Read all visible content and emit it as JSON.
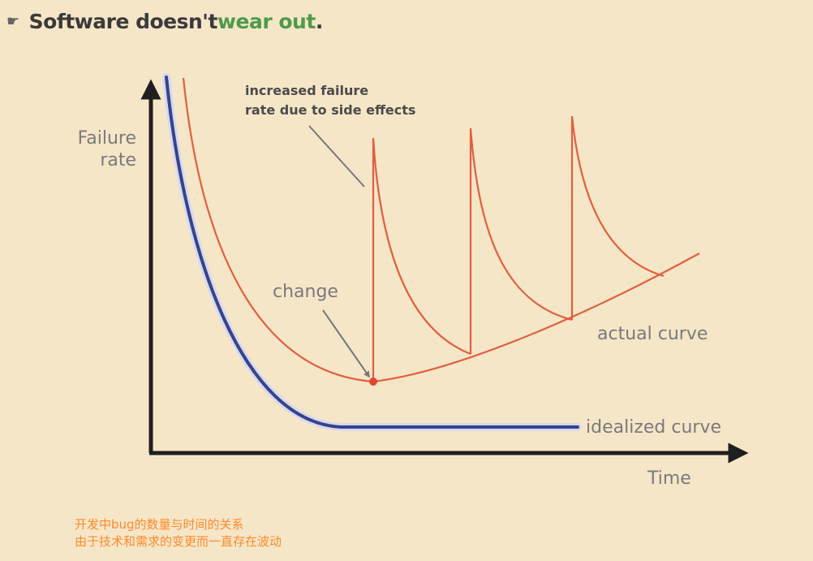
{
  "bullet": {
    "icon": "pointing-hand-icon",
    "text_before": "Software doesn't ",
    "text_highlight": "wear out",
    "text_after": ".",
    "highlight_color": "#4e9a4a"
  },
  "diagram": {
    "y_axis_label_line1": "Failure",
    "y_axis_label_line2": "rate",
    "x_axis_label": "Time",
    "annotation_line1": "increased failure",
    "annotation_line2": "rate due to side effects",
    "change_label": "change",
    "actual_label": "actual curve",
    "idealized_label": "idealized curve",
    "colors": {
      "actual": "#e0603e",
      "idealized": "#35448a",
      "axis": "#1f1f1f"
    }
  },
  "notes": {
    "line1": "开发中bug的数量与时间的关系",
    "line2": "由于技术和需求的变更而一直存在波动"
  }
}
